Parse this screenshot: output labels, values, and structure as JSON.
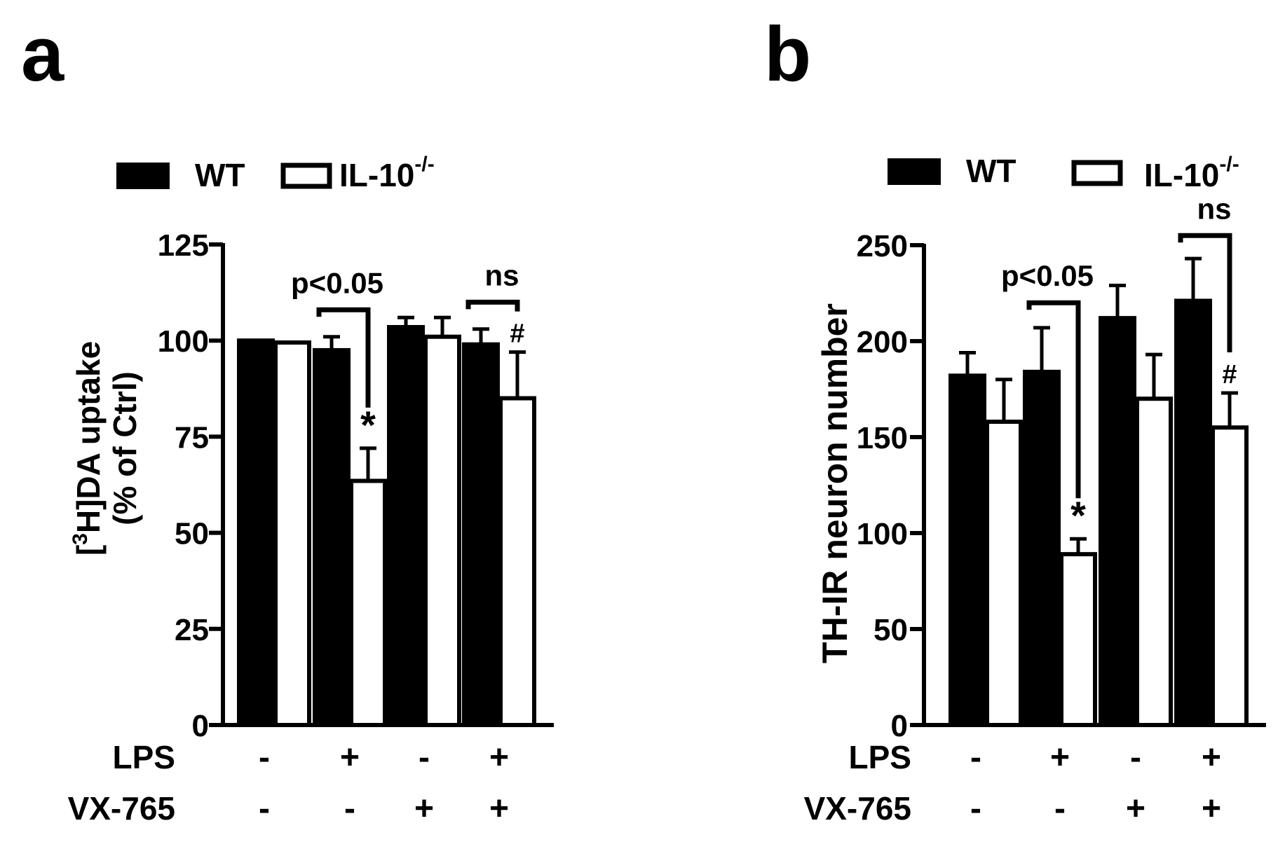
{
  "chart_data": [
    {
      "panel_label": "a",
      "type": "bar",
      "ylabel_line1_open": "[",
      "ylabel_line1_sup": "3",
      "ylabel_line1_rest": "H]DA uptake",
      "ylabel_line2": "(% of Ctrl)",
      "ylim": [
        0,
        125
      ],
      "yticks": [
        0,
        25,
        50,
        75,
        100,
        125
      ],
      "legend": [
        {
          "name": "WT",
          "fill": "#000000"
        },
        {
          "name": "IL-10",
          "sup": "-/-",
          "fill": "#ffffff"
        }
      ],
      "series": [
        {
          "name": "WT",
          "values": [
            100,
            97.5,
            103.5,
            99
          ],
          "errors": [
            0,
            3.5,
            2.5,
            4
          ]
        },
        {
          "name": "IL-10-/-",
          "values": [
            99.5,
            63.5,
            101,
            85
          ],
          "errors": [
            0,
            8.5,
            5,
            12
          ]
        }
      ],
      "treatment_rows": [
        {
          "label": "LPS",
          "values": [
            "-",
            "+",
            "-",
            "+"
          ]
        },
        {
          "label": "VX-765",
          "values": [
            "-",
            "-",
            "+",
            "+"
          ]
        }
      ],
      "annotations": {
        "brackets": [
          {
            "group": 1,
            "label": "p<0.05",
            "y": 108
          },
          {
            "group": 3,
            "label": "ns",
            "y": 110
          }
        ],
        "marks": [
          {
            "group": 1,
            "series": 1,
            "symbol": "*"
          },
          {
            "group": 3,
            "series": 1,
            "symbol": "#"
          }
        ]
      }
    },
    {
      "panel_label": "b",
      "type": "bar",
      "ylabel": "TH-IR neuron number",
      "ylim": [
        0,
        250
      ],
      "yticks": [
        0,
        50,
        100,
        150,
        200,
        250
      ],
      "legend": [
        {
          "name": "WT",
          "fill": "#000000"
        },
        {
          "name": "IL-10",
          "sup": "-/-",
          "fill": "#ffffff"
        }
      ],
      "series": [
        {
          "name": "WT",
          "values": [
            182,
            184,
            212,
            221
          ],
          "errors": [
            12,
            23,
            17,
            22
          ]
        },
        {
          "name": "IL-10-/-",
          "values": [
            158,
            89,
            170,
            155
          ],
          "errors": [
            22,
            8,
            23,
            18
          ]
        }
      ],
      "treatment_rows": [
        {
          "label": "LPS",
          "values": [
            "-",
            "+",
            "-",
            "+"
          ]
        },
        {
          "label": "VX-765",
          "values": [
            "-",
            "-",
            "+",
            "+"
          ]
        }
      ],
      "annotations": {
        "brackets": [
          {
            "group": 1,
            "label": "p<0.05",
            "y": 220
          },
          {
            "group": 3,
            "label": "ns",
            "y": 255
          }
        ],
        "marks": [
          {
            "group": 1,
            "series": 1,
            "symbol": "*"
          },
          {
            "group": 3,
            "series": 1,
            "symbol": "#"
          }
        ]
      }
    }
  ]
}
